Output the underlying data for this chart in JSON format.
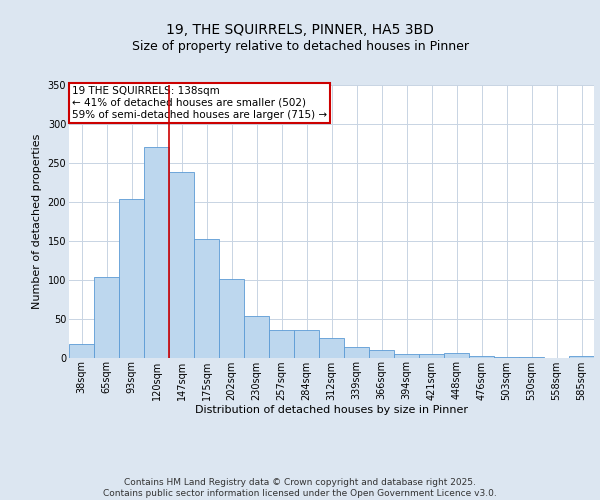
{
  "title": "19, THE SQUIRRELS, PINNER, HA5 3BD",
  "subtitle": "Size of property relative to detached houses in Pinner",
  "xlabel": "Distribution of detached houses by size in Pinner",
  "ylabel": "Number of detached properties",
  "categories": [
    "38sqm",
    "65sqm",
    "93sqm",
    "120sqm",
    "147sqm",
    "175sqm",
    "202sqm",
    "230sqm",
    "257sqm",
    "284sqm",
    "312sqm",
    "339sqm",
    "366sqm",
    "394sqm",
    "421sqm",
    "448sqm",
    "476sqm",
    "503sqm",
    "530sqm",
    "558sqm",
    "585sqm"
  ],
  "values": [
    17,
    103,
    204,
    270,
    238,
    152,
    101,
    53,
    35,
    35,
    25,
    14,
    9,
    5,
    5,
    6,
    2,
    1,
    1,
    0,
    2
  ],
  "bar_color": "#bdd7ee",
  "bar_edge_color": "#5b9bd5",
  "background_color": "#dce6f1",
  "plot_bg_color": "#ffffff",
  "grid_color": "#c8d4e3",
  "vline_x_index": 3.5,
  "vline_color": "#cc0000",
  "annotation_box_text": "19 THE SQUIRRELS: 138sqm\n← 41% of detached houses are smaller (502)\n59% of semi-detached houses are larger (715) →",
  "annotation_box_color": "#cc0000",
  "ylim": [
    0,
    350
  ],
  "yticks": [
    0,
    50,
    100,
    150,
    200,
    250,
    300,
    350
  ],
  "footer": "Contains HM Land Registry data © Crown copyright and database right 2025.\nContains public sector information licensed under the Open Government Licence v3.0.",
  "title_fontsize": 10,
  "subtitle_fontsize": 9,
  "axis_label_fontsize": 8,
  "tick_fontsize": 7,
  "annotation_fontsize": 7.5,
  "footer_fontsize": 6.5
}
